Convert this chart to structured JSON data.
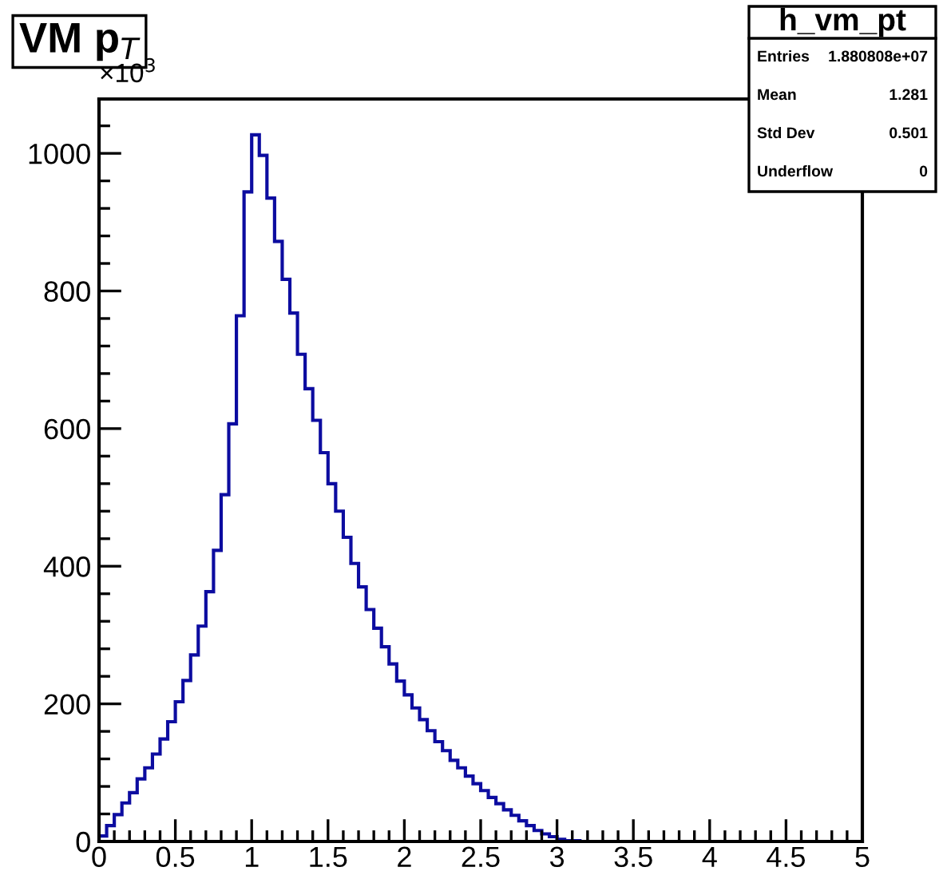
{
  "chart_data": {
    "type": "histogram",
    "title": "VM p$_{T}$",
    "bins": [
      0,
      0.05,
      0.1,
      0.15,
      0.2,
      0.25,
      0.3,
      0.35,
      0.4,
      0.45,
      0.5,
      0.55,
      0.6,
      0.65,
      0.7,
      0.75,
      0.8,
      0.85,
      0.9,
      0.95,
      1,
      1.05,
      1.1,
      1.15,
      1.2,
      1.25,
      1.3,
      1.35,
      1.4,
      1.45,
      1.5,
      1.55,
      1.6,
      1.65,
      1.7,
      1.75,
      1.8,
      1.85,
      1.9,
      1.95,
      2,
      2.05,
      2.1,
      2.15,
      2.2,
      2.25,
      2.3,
      2.35,
      2.4,
      2.45,
      2.5,
      2.55,
      2.6,
      2.65,
      2.7,
      2.75,
      2.8,
      2.85,
      2.9,
      2.95,
      3,
      3.05,
      3.1,
      3.15,
      3.2,
      3.25,
      3.3,
      3.35,
      3.4,
      3.45,
      3.5,
      3.55,
      3.6,
      3.65,
      3.7,
      3.75,
      3.8,
      3.85,
      3.9,
      3.95,
      4,
      4.05,
      4.1,
      4.15,
      4.2,
      4.25,
      4.3,
      4.35,
      4.4,
      4.45,
      4.5,
      4.55,
      4.6,
      4.65,
      4.7,
      4.75,
      4.8,
      4.85,
      4.9,
      4.95,
      5
    ],
    "values": [
      8,
      23,
      39,
      56,
      71,
      91,
      107,
      127,
      149,
      174,
      203,
      234,
      271,
      313,
      363,
      423,
      504,
      607,
      764,
      944,
      1027,
      997,
      935,
      872,
      817,
      768,
      708,
      658,
      612,
      565,
      520,
      480,
      442,
      404,
      370,
      337,
      310,
      283,
      258,
      233,
      213,
      194,
      177,
      161,
      145,
      132,
      118,
      107,
      95,
      84,
      74,
      64,
      55,
      46,
      38,
      30,
      23,
      16,
      11,
      7,
      3,
      1,
      1,
      0,
      0,
      0,
      0,
      0,
      0,
      0,
      0,
      0,
      0,
      0,
      0,
      0,
      0,
      0,
      0,
      0,
      0,
      0,
      0,
      0,
      0,
      0,
      0,
      0,
      0,
      0,
      0,
      0,
      0,
      0,
      0,
      0,
      0,
      0,
      0,
      0
    ],
    "color": "#0c0ca0",
    "xlim": [
      0,
      5
    ],
    "ylim": [
      0,
      1079
    ],
    "xticks": [
      0,
      {
        "value": 0.1,
        "label": null
      },
      {
        "value": 0.2,
        "label": null
      },
      {
        "value": 0.3,
        "label": null
      },
      {
        "value": 0.4,
        "label": null
      },
      0.5,
      {
        "value": 0.6,
        "label": null
      },
      {
        "value": 0.7,
        "label": null
      },
      {
        "value": 0.8,
        "label": null
      },
      {
        "value": 0.9,
        "label": null
      },
      1,
      {
        "value": 1.1,
        "label": null
      },
      {
        "value": 1.2,
        "label": null
      },
      {
        "value": 1.3,
        "label": null
      },
      {
        "value": 1.4,
        "label": null
      },
      1.5,
      {
        "value": 1.6,
        "label": null
      },
      {
        "value": 1.7,
        "label": null
      },
      {
        "value": 1.8,
        "label": null
      },
      {
        "value": 1.9,
        "label": null
      },
      2,
      {
        "value": 2.1,
        "label": null
      },
      {
        "value": 2.2,
        "label": null
      },
      {
        "value": 2.3,
        "label": null
      },
      {
        "value": 2.4,
        "label": null
      },
      2.5,
      {
        "value": 2.6,
        "label": null
      },
      {
        "value": 2.7,
        "label": null
      },
      {
        "value": 2.8,
        "label": null
      },
      {
        "value": 2.9,
        "label": null
      },
      3,
      {
        "value": 3.1,
        "label": null
      },
      {
        "value": 3.2,
        "label": null
      },
      {
        "value": 3.3,
        "label": null
      },
      {
        "value": 3.4,
        "label": null
      },
      3.5,
      {
        "value": 3.6,
        "label": null
      },
      {
        "value": 3.7,
        "label": null
      },
      {
        "value": 3.8,
        "label": null
      },
      {
        "value": 3.9,
        "label": null
      },
      4,
      {
        "value": 4.1,
        "label": null
      },
      {
        "value": 4.2,
        "label": null
      },
      {
        "value": 4.3,
        "label": null
      },
      {
        "value": 4.4,
        "label": null
      },
      4.5,
      {
        "value": 4.6,
        "label": null
      },
      {
        "value": 4.7,
        "label": null
      },
      {
        "value": 4.8,
        "label": null
      },
      {
        "value": 4.9,
        "label": null
      },
      5
    ],
    "yticks": [
      0,
      {
        "value": 40,
        "label": null
      },
      {
        "value": 80,
        "label": null
      },
      {
        "value": 120,
        "label": null
      },
      {
        "value": 160,
        "label": null
      },
      200,
      {
        "value": 240,
        "label": null
      },
      {
        "value": 280,
        "label": null
      },
      {
        "value": 320,
        "label": null
      },
      {
        "value": 360,
        "label": null
      },
      400,
      {
        "value": 440,
        "label": null
      },
      {
        "value": 480,
        "label": null
      },
      {
        "value": 520,
        "label": null
      },
      {
        "value": 560,
        "label": null
      },
      600,
      {
        "value": 640,
        "label": null
      },
      {
        "value": 680,
        "label": null
      },
      {
        "value": 720,
        "label": null
      },
      {
        "value": 760,
        "label": null
      },
      800,
      {
        "value": 840,
        "label": null
      },
      {
        "value": 880,
        "label": null
      },
      {
        "value": 920,
        "label": null
      },
      {
        "value": 960,
        "label": null
      },
      1000,
      {
        "value": 1040,
        "label": null
      }
    ],
    "annotations": [
      "×10$^{3}$",
      "h_vm_pt",
      "Entries",
      "1.880808e+07",
      "Mean",
      "1.281",
      "Std Dev",
      "0.501",
      "Underflow",
      "0"
    ],
    "grid": false,
    "legend": false
  }
}
